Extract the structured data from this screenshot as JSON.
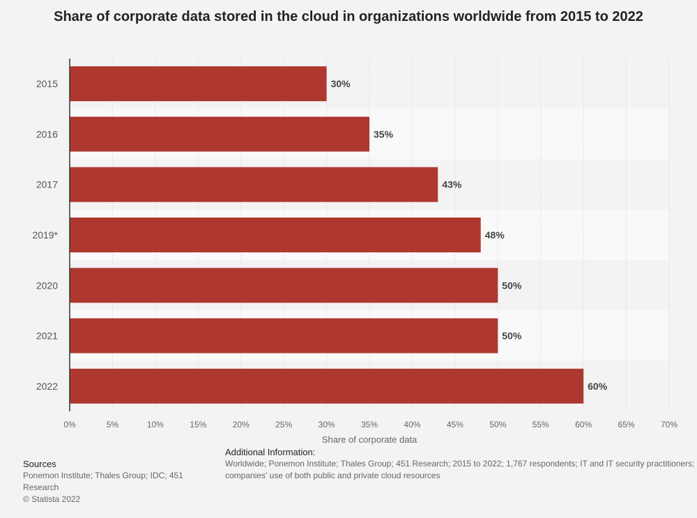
{
  "chart_data": {
    "type": "bar",
    "orientation": "horizontal",
    "title": "Share of corporate data stored in the cloud in organizations worldwide from 2015 to 2022",
    "categories": [
      "2015",
      "2016",
      "2017",
      "2019*",
      "2020",
      "2021",
      "2022"
    ],
    "values": [
      30,
      35,
      43,
      48,
      50,
      50,
      60
    ],
    "value_labels": [
      "30%",
      "35%",
      "43%",
      "48%",
      "50%",
      "50%",
      "60%"
    ],
    "xlabel": "Share of corporate data",
    "ylabel": "",
    "xlim": [
      0,
      70
    ],
    "xticks": [
      0,
      5,
      10,
      15,
      20,
      25,
      30,
      35,
      40,
      45,
      50,
      55,
      60,
      65,
      70
    ],
    "xtick_labels": [
      "0%",
      "5%",
      "10%",
      "15%",
      "20%",
      "25%",
      "30%",
      "35%",
      "40%",
      "45%",
      "50%",
      "55%",
      "60%",
      "65%",
      "70%"
    ],
    "bar_color": "#ae3830",
    "grid": true
  },
  "sources": {
    "heading": "Sources",
    "text": "Ponemon Institute; Thales Group; IDC; 451 Research",
    "copyright": "© Statista 2022"
  },
  "additional_info": {
    "heading": "Additional Information:",
    "text": "Worldwide; Ponemon Institute; Thales Group; 451 Research; 2015 to 2022; 1,767 respondents; IT and IT security practitioners; companies' use of both public and private cloud resources"
  }
}
